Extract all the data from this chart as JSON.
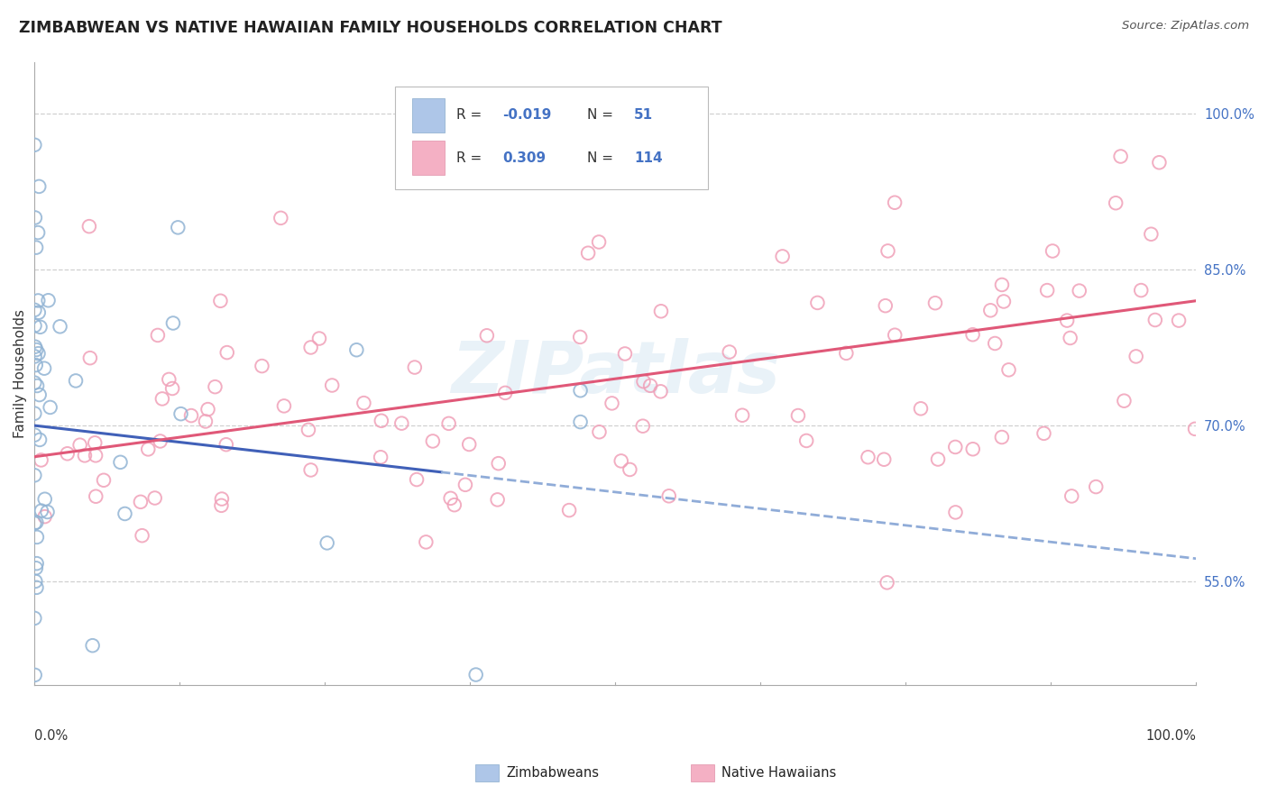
{
  "title": "ZIMBABWEAN VS NATIVE HAWAIIAN FAMILY HOUSEHOLDS CORRELATION CHART",
  "source": "Source: ZipAtlas.com",
  "ylabel": "Family Households",
  "right_yticks": [
    "55.0%",
    "70.0%",
    "85.0%",
    "100.0%"
  ],
  "right_ytick_vals": [
    0.55,
    0.7,
    0.85,
    1.0
  ],
  "zimbabwean_r": -0.019,
  "zimbabwean_n": 51,
  "hawaiian_r": 0.309,
  "hawaiian_n": 114,
  "blue_dot_color": "#92b4d4",
  "pink_dot_color": "#f0a0b8",
  "blue_line_solid_color": "#4060b8",
  "blue_line_dash_color": "#90acd8",
  "pink_line_color": "#e05878",
  "watermark": "ZIPatlas",
  "background_color": "#ffffff",
  "grid_color": "#d0d0d0",
  "right_axis_color": "#4472c4",
  "ymin": 0.45,
  "ymax": 1.05,
  "xmin": 0.0,
  "xmax": 1.0,
  "zim_trend_y0": 0.7,
  "zim_trend_y1": 0.572,
  "haw_trend_y0": 0.67,
  "haw_trend_y1": 0.82
}
